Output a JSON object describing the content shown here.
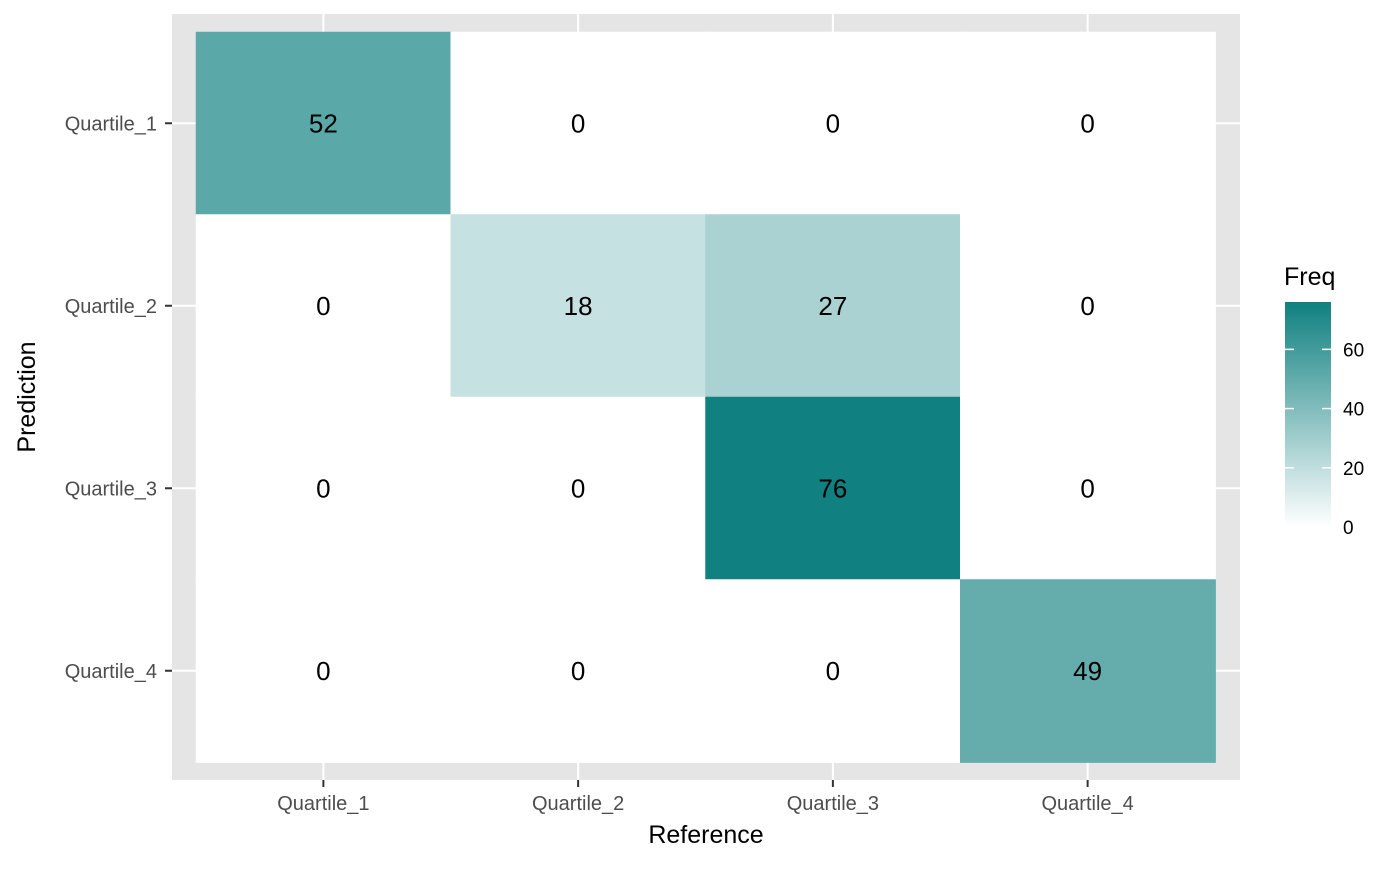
{
  "chart_data": {
    "type": "heatmap",
    "x_categories": [
      "Quartile_1",
      "Quartile_2",
      "Quartile_3",
      "Quartile_4"
    ],
    "y_categories": [
      "Quartile_1",
      "Quartile_2",
      "Quartile_3",
      "Quartile_4"
    ],
    "values": [
      [
        52,
        0,
        0,
        0
      ],
      [
        0,
        18,
        27,
        0
      ],
      [
        0,
        0,
        76,
        0
      ],
      [
        0,
        0,
        0,
        49
      ]
    ],
    "xlabel": "Reference",
    "ylabel": "Prediction",
    "legend": {
      "title": "Freq",
      "placement": "right",
      "ticks": [
        0,
        20,
        40,
        60
      ],
      "range": [
        0,
        76
      ]
    },
    "colors": {
      "low": "#ffffff",
      "high": "#108080",
      "panel_background": "#e5e5e5",
      "grid": "#ffffff"
    },
    "grid": true
  }
}
